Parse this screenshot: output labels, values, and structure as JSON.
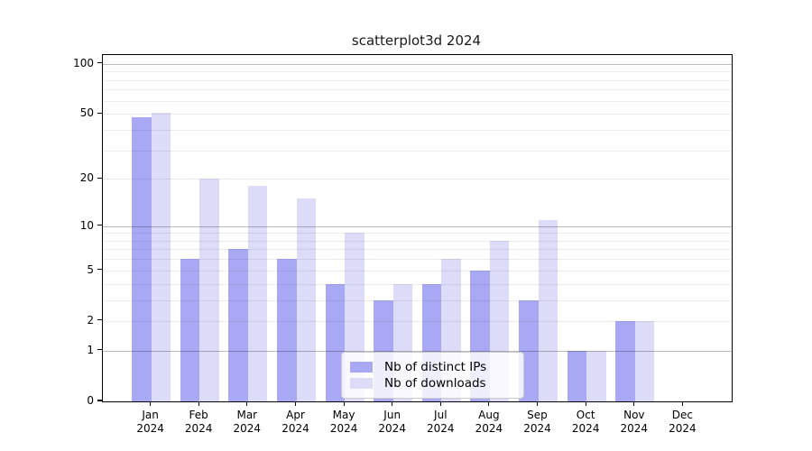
{
  "chart_data": {
    "type": "bar",
    "title": "scatterplot3d 2024",
    "categories": [
      "Jan",
      "Feb",
      "Mar",
      "Apr",
      "May",
      "Jun",
      "Jul",
      "Aug",
      "Sep",
      "Oct",
      "Nov",
      "Dec"
    ],
    "year_label": "2024",
    "series": [
      {
        "name": "Nb of distinct IPs",
        "color": "#a8a8f4",
        "values": [
          48,
          6,
          7,
          6,
          4,
          3,
          4,
          5,
          3,
          1,
          2,
          0
        ]
      },
      {
        "name": "Nb of downloads",
        "color": "#dcdcf9",
        "values": [
          51,
          20,
          18,
          15,
          9,
          4,
          6,
          8,
          11,
          1,
          2,
          0
        ]
      }
    ],
    "y_scale": "log1p",
    "ylim": [
      0,
      113
    ],
    "y_ticks": [
      0,
      1,
      2,
      5,
      10,
      20,
      50,
      100
    ],
    "gridlines_minor": [
      2,
      3,
      4,
      5,
      6,
      7,
      8,
      9,
      20,
      30,
      40,
      50,
      60,
      70,
      80,
      90
    ],
    "gridlines_major": [
      1,
      10,
      100
    ],
    "xlabel": "",
    "ylabel": "",
    "grid": true,
    "legend_position": "lower center",
    "colors": {
      "spine": "#000000",
      "text": "#1a1a1a",
      "legend_border": "#cccccc",
      "legend_background": "#ffffff"
    }
  }
}
